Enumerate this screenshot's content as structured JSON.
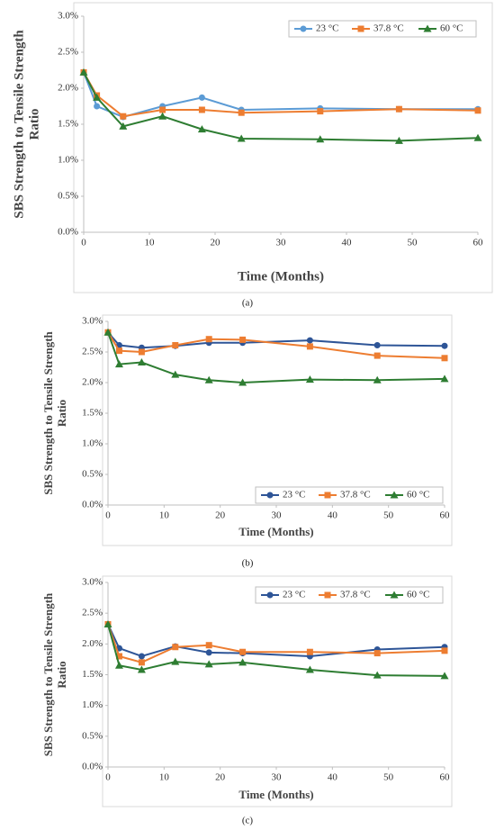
{
  "chart_data": [
    {
      "type": "line",
      "caption": "(a)",
      "x_label": "Time (Months)",
      "y_label": [
        "SBS Strength to Tensile Strength",
        "Ratio"
      ],
      "x": [
        0,
        2,
        6,
        12,
        18,
        24,
        36,
        48,
        60
      ],
      "xlim": [
        0,
        60
      ],
      "xticks": [
        0,
        10,
        20,
        30,
        40,
        50,
        60
      ],
      "ylim": [
        0,
        3
      ],
      "yticks": [
        {
          "value": 0,
          "label": "0.0%"
        },
        {
          "value": 0.5,
          "label": "0.5%"
        },
        {
          "value": 1,
          "label": "1.0%"
        },
        {
          "value": 1.5,
          "label": "1.5%"
        },
        {
          "value": 2,
          "label": "2.0%"
        },
        {
          "value": 2.5,
          "label": "2.5%"
        },
        {
          "value": 3,
          "label": "3.0%"
        }
      ],
      "grid": false,
      "legend_position": "upper right",
      "series": [
        {
          "name": "23 °C",
          "color": "#5b9bd5",
          "marker": "circle",
          "values": [
            2.22,
            1.75,
            1.6,
            1.75,
            1.87,
            1.7,
            1.72,
            1.71,
            1.71
          ]
        },
        {
          "name": "37.8 °C",
          "color": "#ed7d31",
          "marker": "square",
          "values": [
            2.22,
            1.9,
            1.61,
            1.7,
            1.7,
            1.66,
            1.68,
            1.71,
            1.69
          ]
        },
        {
          "name": "60 °C",
          "color": "#2e7d32",
          "marker": "triangle",
          "values": [
            2.22,
            1.87,
            1.47,
            1.61,
            1.43,
            1.3,
            1.29,
            1.27,
            1.31
          ]
        }
      ]
    },
    {
      "type": "line",
      "caption": "(b)",
      "x_label": "Time (Months)",
      "y_label": [
        "SBS Strength to Tensile Strength",
        "Ratio"
      ],
      "x": [
        0,
        2,
        6,
        12,
        18,
        24,
        36,
        48,
        60
      ],
      "xlim": [
        0,
        60
      ],
      "xticks": [
        0,
        10,
        20,
        30,
        40,
        50,
        60
      ],
      "ylim": [
        0,
        3
      ],
      "yticks": [
        {
          "value": 0,
          "label": "0.0%"
        },
        {
          "value": 0.5,
          "label": "0.5%"
        },
        {
          "value": 1,
          "label": "1.0%"
        },
        {
          "value": 1.5,
          "label": "1.5%"
        },
        {
          "value": 2,
          "label": "2.0%"
        },
        {
          "value": 2.5,
          "label": "2.5%"
        },
        {
          "value": 3,
          "label": "3.0%"
        }
      ],
      "grid": false,
      "legend_position": "lower right",
      "series": [
        {
          "name": "23 °C",
          "color": "#2e5597",
          "marker": "circle",
          "values": [
            2.82,
            2.61,
            2.57,
            2.6,
            2.65,
            2.65,
            2.69,
            2.61,
            2.6
          ]
        },
        {
          "name": "37.8 °C",
          "color": "#ed7d31",
          "marker": "square",
          "values": [
            2.82,
            2.52,
            2.5,
            2.61,
            2.71,
            2.7,
            2.59,
            2.44,
            2.4
          ]
        },
        {
          "name": "60 °C",
          "color": "#2e7d32",
          "marker": "triangle",
          "values": [
            2.82,
            2.3,
            2.33,
            2.13,
            2.04,
            2.0,
            2.05,
            2.04,
            2.06
          ]
        }
      ]
    },
    {
      "type": "line",
      "caption": "(c)",
      "x_label": "Time (Months)",
      "y_label": [
        "SBS Strength to Tensile Strength",
        "Ratio"
      ],
      "x": [
        0,
        2,
        6,
        12,
        18,
        24,
        36,
        48,
        60
      ],
      "xlim": [
        0,
        60
      ],
      "xticks": [
        0,
        10,
        20,
        30,
        40,
        50,
        60
      ],
      "ylim": [
        0,
        3
      ],
      "yticks": [
        {
          "value": 0,
          "label": "0.0%"
        },
        {
          "value": 0.5,
          "label": "0.5%"
        },
        {
          "value": 1,
          "label": "1.0%"
        },
        {
          "value": 1.5,
          "label": "1.5%"
        },
        {
          "value": 2,
          "label": "2.0%"
        },
        {
          "value": 2.5,
          "label": "2.5%"
        },
        {
          "value": 3,
          "label": "3.0%"
        }
      ],
      "grid": false,
      "legend_position": "upper right",
      "series": [
        {
          "name": "23 °C",
          "color": "#2e5597",
          "marker": "circle",
          "values": [
            2.32,
            1.93,
            1.8,
            1.96,
            1.86,
            1.85,
            1.8,
            1.91,
            1.95
          ]
        },
        {
          "name": "37.8 °C",
          "color": "#ed7d31",
          "marker": "square",
          "values": [
            2.32,
            1.8,
            1.7,
            1.95,
            1.98,
            1.87,
            1.87,
            1.85,
            1.89
          ]
        },
        {
          "name": "60 °C",
          "color": "#2e7d32",
          "marker": "triangle",
          "values": [
            2.32,
            1.65,
            1.58,
            1.71,
            1.67,
            1.7,
            1.58,
            1.49,
            1.48
          ]
        }
      ]
    }
  ]
}
